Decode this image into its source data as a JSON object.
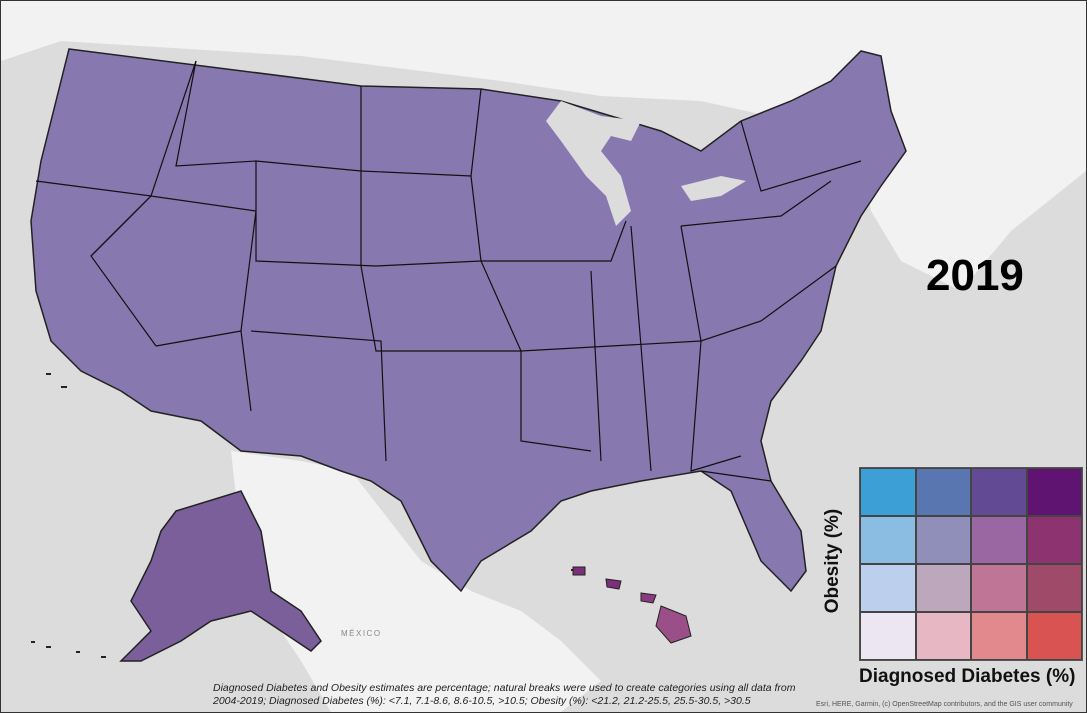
{
  "map": {
    "year": "2019",
    "legend": {
      "y_axis_label": "Obesity (%)",
      "x_axis_label": "Diagnosed Diabetes (%)",
      "cells": [
        [
          "#3ca0d6",
          "#5a76b0",
          "#634a94",
          "#5e1470"
        ],
        [
          "#8bbde3",
          "#8f8fb9",
          "#9a67a2",
          "#8c3370"
        ],
        [
          "#bcd0ee",
          "#bca7bc",
          "#bf7596",
          "#a04a6a"
        ],
        [
          "#ece6f3",
          "#e8b7c4",
          "#e2898d",
          "#d95353"
        ]
      ]
    },
    "footnote": "Diagnosed Diabetes and Obesity estimates are percentage; natural breaks were used to create categories using all data from 2004-2019; Diagnosed Diabetes (%): <7.1, 7.1-8.6, 8.6-10.5, >10.5; Obesity (%): <21.2, 21.2-25.5, 25.5-30.5, >30.5",
    "attribution": "Esri, HERE, Garmin, (c) OpenStreetMap contributors, and the GIS user community",
    "basemap_label": "MÉXICO",
    "background_color": "#dcdcdc",
    "land_color": "#f2f2f2"
  }
}
